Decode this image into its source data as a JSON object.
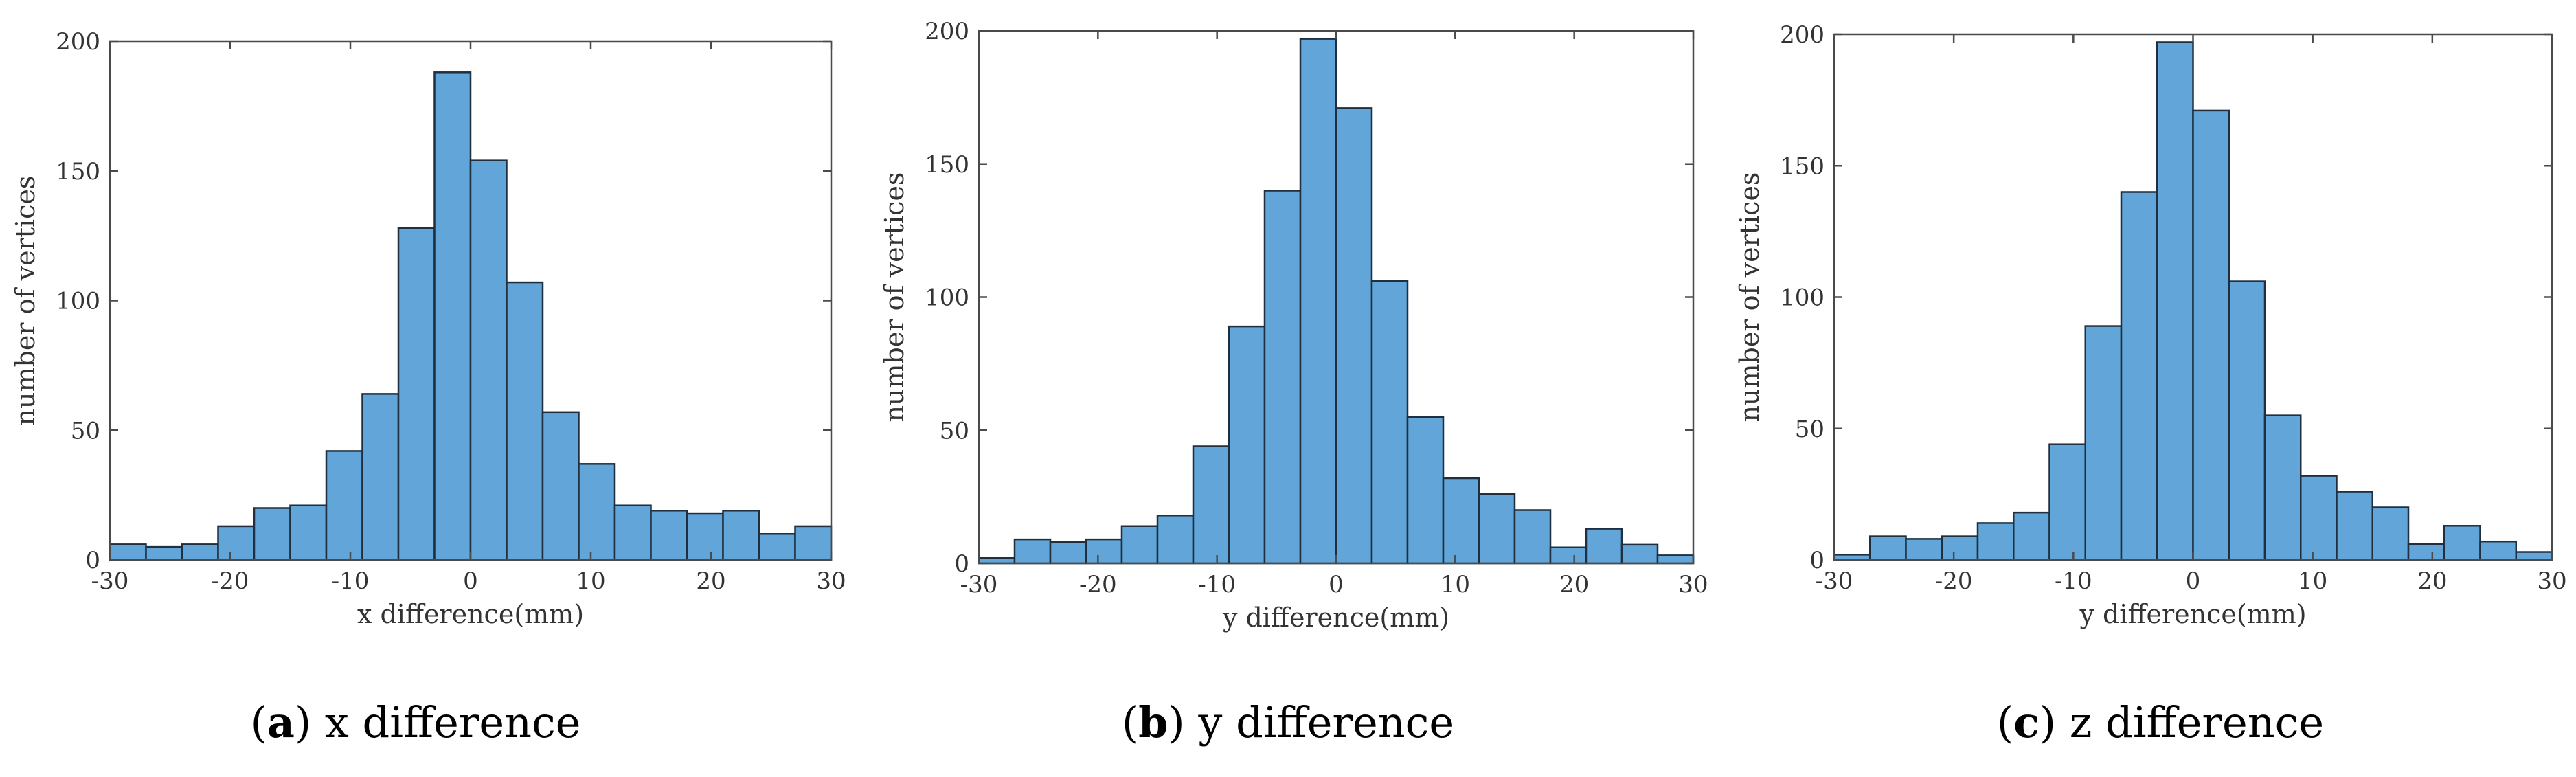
{
  "chart_data": [
    {
      "type": "bar",
      "panel": "a",
      "title": "x difference",
      "caption_letter": "(a)",
      "caption_text": "x difference",
      "xlabel": "x difference(mm)",
      "ylabel": "number of vertices",
      "xlim": [
        -30,
        30
      ],
      "ylim": [
        0,
        200
      ],
      "xticks": [
        -30,
        -20,
        -10,
        0,
        10,
        20,
        30
      ],
      "yticks": [
        0,
        50,
        100,
        150,
        200
      ],
      "bin_edges": [
        -30,
        -27,
        -24,
        -21,
        -18,
        -15,
        -12,
        -9,
        -6,
        -3,
        0,
        3,
        6,
        9,
        12,
        15,
        18,
        21,
        24,
        27,
        30
      ],
      "values": [
        6,
        5,
        6,
        13,
        20,
        21,
        42,
        64,
        128,
        188,
        154,
        107,
        57,
        37,
        21,
        19,
        18,
        19,
        10,
        13
      ]
    },
    {
      "type": "bar",
      "panel": "b",
      "title": "y difference",
      "caption_letter": "(b)",
      "caption_text": "y difference",
      "xlabel": "y difference(mm)",
      "ylabel": "number of vertices",
      "xlim": [
        -30,
        30
      ],
      "ylim": [
        0,
        200
      ],
      "xticks": [
        -30,
        -20,
        -10,
        0,
        10,
        20,
        30
      ],
      "yticks": [
        0,
        50,
        100,
        150,
        200
      ],
      "bin_edges": [
        -30,
        -27,
        -24,
        -21,
        -18,
        -15,
        -12,
        -9,
        -6,
        -3,
        0,
        3,
        6,
        9,
        12,
        15,
        18,
        21,
        24,
        27,
        30
      ],
      "values": [
        2,
        9,
        8,
        9,
        14,
        18,
        44,
        89,
        140,
        197,
        171,
        106,
        55,
        32,
        26,
        20,
        6,
        13,
        7,
        3
      ]
    },
    {
      "type": "bar",
      "panel": "c",
      "title": "z difference",
      "caption_letter": "(c)",
      "caption_text": "z difference",
      "xlabel": "y difference(mm)",
      "ylabel": "number of vertices",
      "xlim": [
        -30,
        30
      ],
      "ylim": [
        0,
        200
      ],
      "xticks": [
        -30,
        -20,
        -10,
        0,
        10,
        20,
        30
      ],
      "yticks": [
        0,
        50,
        100,
        150,
        200
      ],
      "bin_edges": [
        -30,
        -27,
        -24,
        -21,
        -18,
        -15,
        -12,
        -9,
        -6,
        -3,
        0,
        3,
        6,
        9,
        12,
        15,
        18,
        21,
        24,
        27,
        30
      ],
      "values": [
        2,
        9,
        8,
        9,
        14,
        18,
        44,
        89,
        140,
        197,
        171,
        106,
        55,
        32,
        26,
        20,
        6,
        13,
        7,
        3
      ]
    }
  ]
}
